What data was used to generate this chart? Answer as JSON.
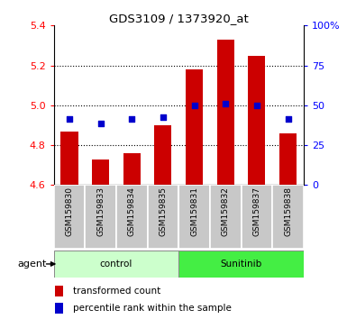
{
  "title": "GDS3109 / 1373920_at",
  "samples": [
    "GSM159830",
    "GSM159833",
    "GSM159834",
    "GSM159835",
    "GSM159831",
    "GSM159832",
    "GSM159837",
    "GSM159838"
  ],
  "bar_values": [
    4.87,
    4.73,
    4.76,
    4.9,
    5.18,
    5.33,
    5.25,
    4.86
  ],
  "percentile_values": [
    4.93,
    4.91,
    4.93,
    4.94,
    5.0,
    5.01,
    5.0,
    4.93
  ],
  "ylim_left": [
    4.6,
    5.4
  ],
  "ylim_right": [
    0,
    100
  ],
  "yticks_left": [
    4.6,
    4.8,
    5.0,
    5.2,
    5.4
  ],
  "yticks_right": [
    0,
    25,
    50,
    75,
    100
  ],
  "ytick_right_labels": [
    "0",
    "25",
    "50",
    "75",
    "100%"
  ],
  "bar_color": "#cc0000",
  "dot_color": "#0000cc",
  "control_color": "#ccffcc",
  "sunitinib_color": "#44ee44",
  "xticklabel_bg": "#c8c8c8",
  "bar_width": 0.55,
  "grid_yticks": [
    4.8,
    5.0,
    5.2
  ],
  "n_control": 4,
  "n_sunitinib": 4
}
